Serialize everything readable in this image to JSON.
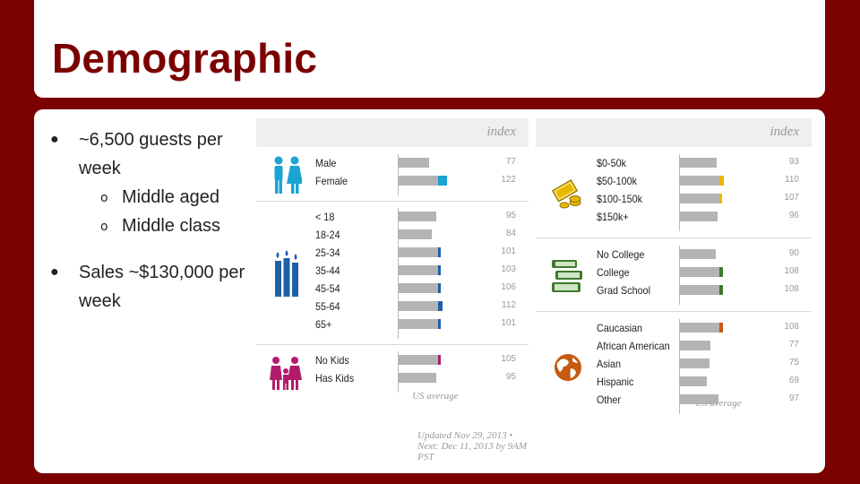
{
  "title": "Demographic",
  "bullets": [
    {
      "text": "~6,500 guests per week",
      "sub": [
        "Middle aged",
        "Middle class"
      ]
    },
    {
      "text": "Sales ~$130,000 per week",
      "sub": []
    }
  ],
  "bullet_glyph": "●",
  "sub_glyph": "o",
  "panel_header": "index",
  "us_average_label": "US average",
  "updated_text": "Updated Nov 29, 2013 • Next: Dec 11, 2013 by 9AM PST",
  "colors": {
    "bar": "#b4b4b4",
    "gender": "#1ba3d3",
    "age": "#1f5fa8",
    "kids": "#b01c6b",
    "income": "#e8b800",
    "education": "#3e7a2c",
    "ethnicity": "#c55a11",
    "accent": "#7b0000"
  },
  "groups_left": [
    {
      "icon": "gender-icon",
      "color_key": "gender",
      "rows": [
        {
          "label": "Male",
          "index": 77
        },
        {
          "label": "Female",
          "index": 122
        }
      ]
    },
    {
      "icon": "age-candles-icon",
      "color_key": "age",
      "rows": [
        {
          "label": "< 18",
          "index": 95
        },
        {
          "label": "18-24",
          "index": 84
        },
        {
          "label": "25-34",
          "index": 101
        },
        {
          "label": "35-44",
          "index": 103
        },
        {
          "label": "45-54",
          "index": 106
        },
        {
          "label": "55-64",
          "index": 112
        },
        {
          "label": "65+",
          "index": 101
        }
      ]
    },
    {
      "icon": "family-icon",
      "color_key": "kids",
      "rows": [
        {
          "label": "No Kids",
          "index": 105
        },
        {
          "label": "Has Kids",
          "index": 95
        }
      ]
    }
  ],
  "groups_right": [
    {
      "icon": "money-icon",
      "color_key": "income",
      "rows": [
        {
          "label": "$0-50k",
          "index": 93
        },
        {
          "label": "$50-100k",
          "index": 110
        },
        {
          "label": "$100-150k",
          "index": 107
        },
        {
          "label": "$150k+",
          "index": 96
        }
      ]
    },
    {
      "icon": "books-icon",
      "color_key": "education",
      "rows": [
        {
          "label": "No College",
          "index": 90
        },
        {
          "label": "College",
          "index": 108
        },
        {
          "label": "Grad School",
          "index": 108
        }
      ]
    },
    {
      "icon": "globe-icon",
      "color_key": "ethnicity",
      "rows": [
        {
          "label": "Caucasian",
          "index": 108
        },
        {
          "label": "African American",
          "index": 77
        },
        {
          "label": "Asian",
          "index": 75
        },
        {
          "label": "Hispanic",
          "index": 69
        },
        {
          "label": "Other",
          "index": 97
        }
      ]
    }
  ]
}
